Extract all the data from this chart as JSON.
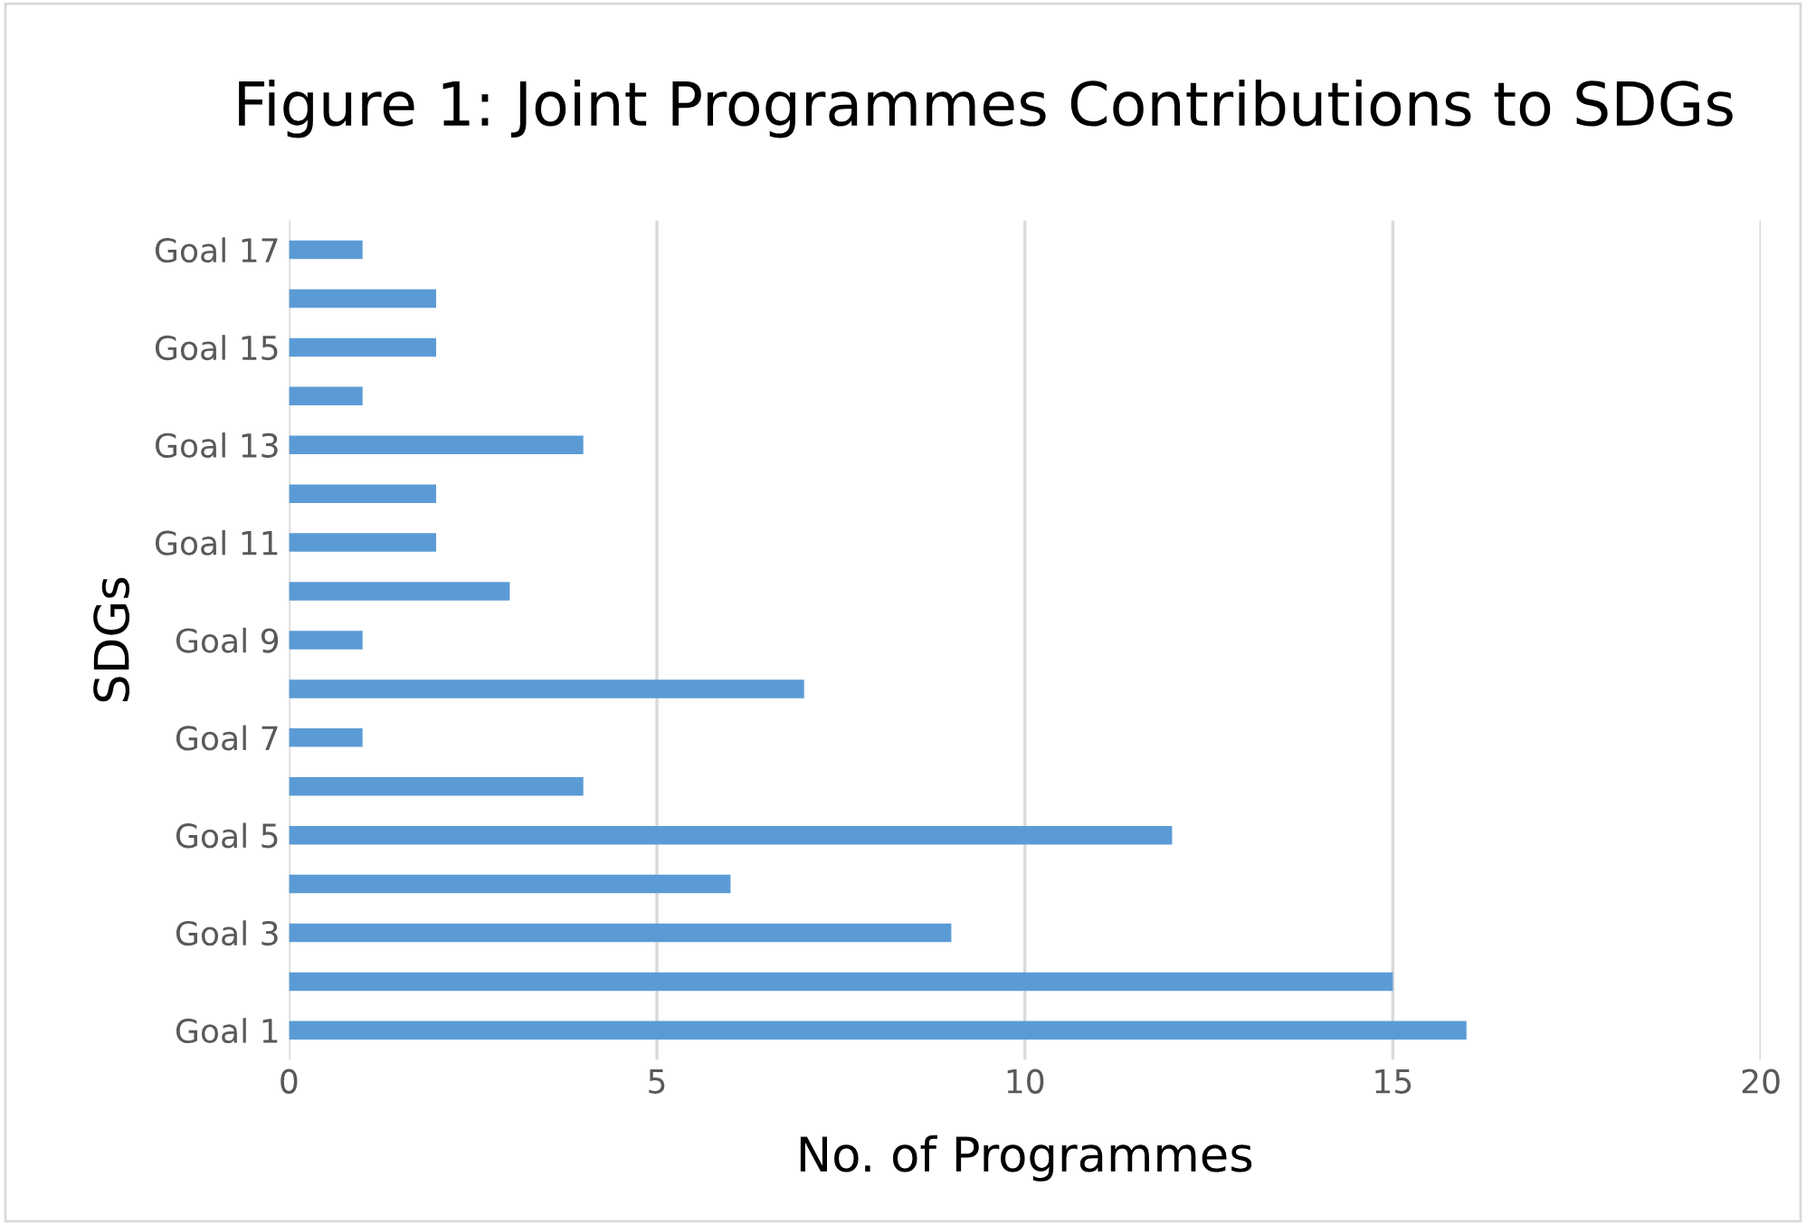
{
  "chart_data": {
    "type": "bar",
    "orientation": "horizontal",
    "title": "Figure 1: Joint Programmes Contributions to SDGs",
    "xlabel": "No. of Programmes",
    "ylabel": "SDGs",
    "categories": [
      "Goal 17",
      null,
      "Goal 15",
      null,
      "Goal 13",
      null,
      "Goal 11",
      null,
      "Goal 9",
      null,
      "Goal 7",
      null,
      "Goal 5",
      null,
      "Goal 3",
      null,
      "Goal 1"
    ],
    "values": [
      1,
      2,
      2,
      1,
      4,
      2,
      2,
      3,
      1,
      7,
      1,
      4,
      12,
      6,
      9,
      15,
      16
    ],
    "color": "#5b9bd5",
    "xlim": [
      0,
      20
    ],
    "xticks": [
      0,
      5,
      10,
      15,
      20
    ],
    "grid": "x",
    "legend": false
  }
}
